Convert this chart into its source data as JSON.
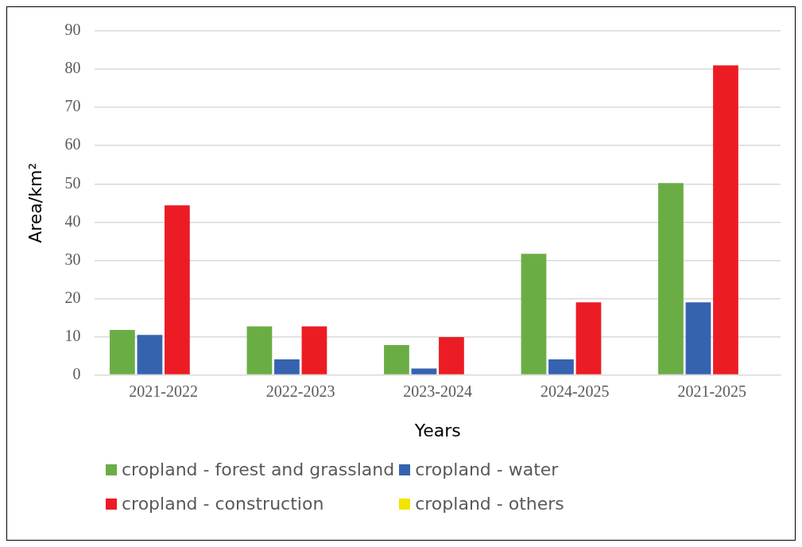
{
  "chart_data": {
    "type": "bar",
    "xlabel": "Years",
    "ylabel": "Area/km²",
    "categories": [
      "2021-2022",
      "2022-2023",
      "2023-2024",
      "2024-2025",
      "2021-2025"
    ],
    "series": [
      {
        "name": "cropland - forest and grassland",
        "color": "#6aad45",
        "values": [
          11.8,
          12.7,
          7.8,
          31.7,
          50.2
        ]
      },
      {
        "name": "cropland - water",
        "color": "#3563b0",
        "values": [
          10.5,
          4.1,
          1.7,
          4.1,
          19
        ]
      },
      {
        "name": "cropland - construction",
        "color": "#ec1c24",
        "values": [
          44.4,
          12.7,
          9.9,
          19,
          81
        ]
      },
      {
        "name": "cropland - others",
        "color": "#f2e500",
        "values": [
          0,
          0,
          0,
          0,
          0
        ]
      }
    ],
    "ylim": [
      0,
      90
    ],
    "yticks": [
      0,
      10,
      20,
      30,
      40,
      50,
      60,
      70,
      80,
      90
    ],
    "grid": "y",
    "legend": "bottom"
  }
}
